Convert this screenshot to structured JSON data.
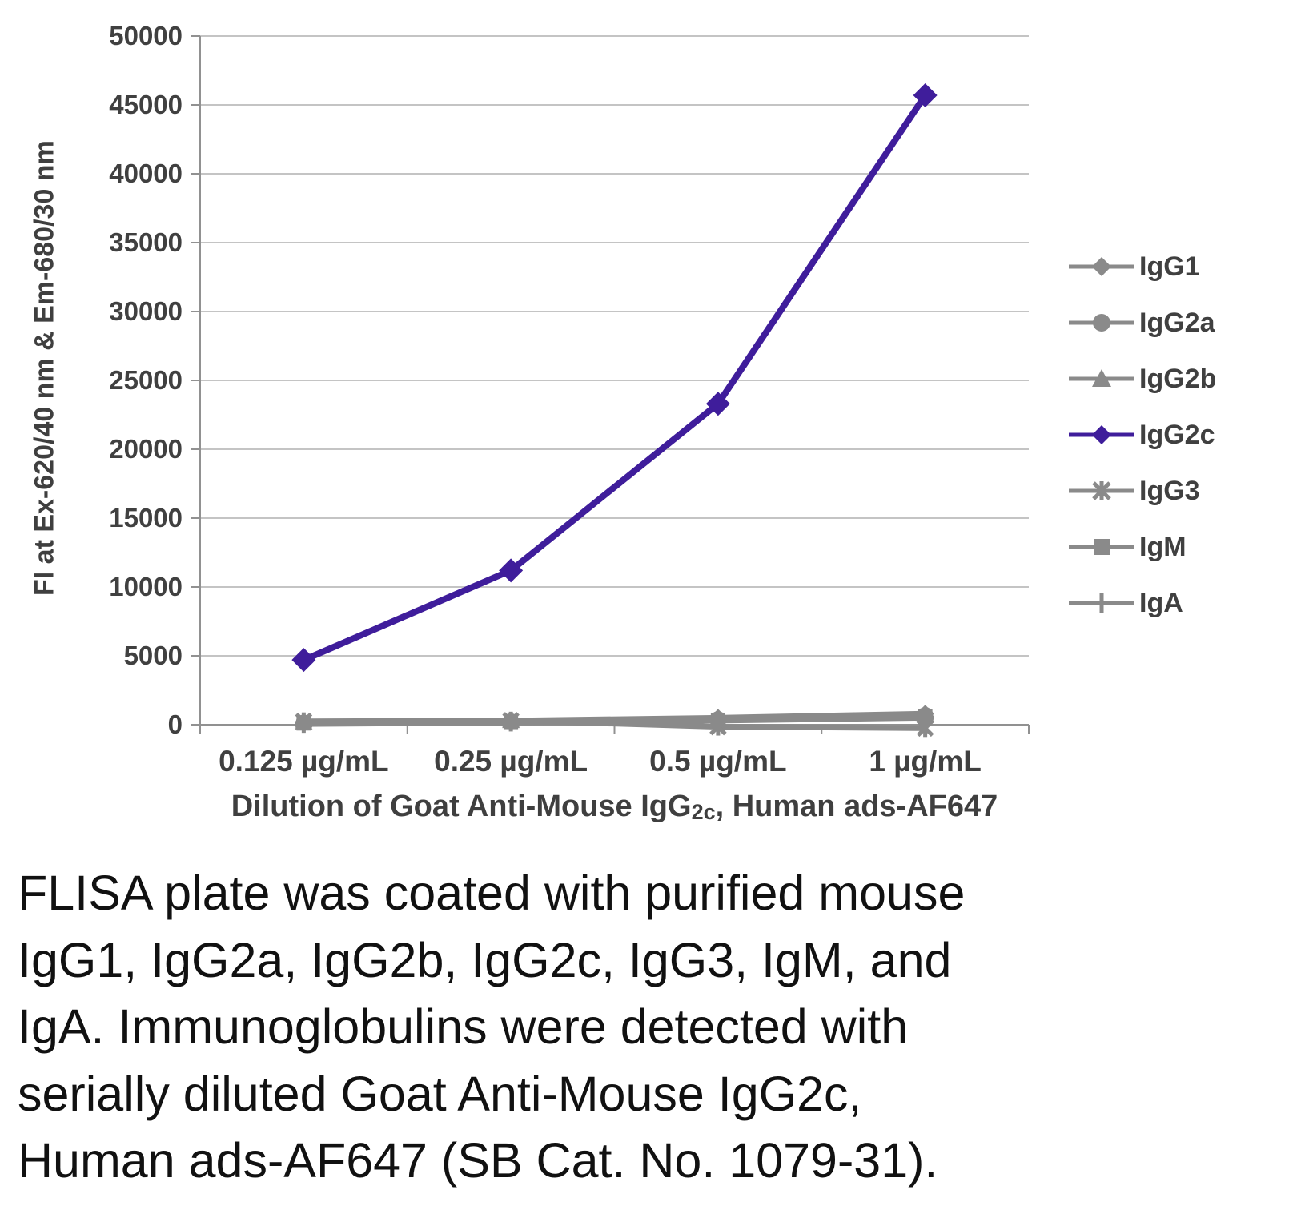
{
  "chart_data": {
    "type": "line",
    "title": "",
    "x_categories": [
      "0.125 µg/mL",
      "0.25 µg/mL",
      "0.5 µg/mL",
      "1 µg/mL"
    ],
    "xlabel": "Dilution of Goat Anti-Mouse IgG2c, Human ads-AF647",
    "xlabel_parts": {
      "prefix": "Dilution of Goat Anti-Mouse IgG",
      "sub": "2c",
      "suffix": ", Human ads-AF647"
    },
    "ylabel": "FI at Ex-620/40 nm & Em-680/30 nm",
    "ylim": [
      0,
      50000
    ],
    "ytick_step": 5000,
    "grid": true,
    "legend_position": "right",
    "series": [
      {
        "name": "IgG1",
        "marker": "diamond",
        "color": "#8a8a8a",
        "values": [
          200,
          300,
          500,
          800
        ]
      },
      {
        "name": "IgG2a",
        "marker": "circle",
        "color": "#8a8a8a",
        "values": [
          150,
          250,
          400,
          700
        ]
      },
      {
        "name": "IgG2b",
        "marker": "triangle",
        "color": "#8a8a8a",
        "values": [
          180,
          280,
          450,
          750
        ]
      },
      {
        "name": "IgG2c",
        "marker": "diamond",
        "color": "#3f1d9b",
        "values": [
          4700,
          11200,
          23300,
          45700
        ]
      },
      {
        "name": "IgG3",
        "marker": "asterisk",
        "color": "#8a8a8a",
        "values": [
          250,
          300,
          -150,
          -250
        ]
      },
      {
        "name": "IgM",
        "marker": "square",
        "color": "#8a8a8a",
        "values": [
          100,
          200,
          350,
          600
        ]
      },
      {
        "name": "IgA",
        "marker": "plus",
        "color": "#8a8a8a",
        "values": [
          50,
          150,
          300,
          500
        ]
      }
    ]
  },
  "caption_lines": [
    "FLISA plate was coated with purified mouse",
    "IgG1, IgG2a, IgG2b, IgG2c, IgG3, IgM, and",
    "IgA.  Immunoglobulins were detected with",
    "serially diluted Goat Anti-Mouse IgG2c,",
    "Human ads-AF647 (SB Cat. No. 1079-31)."
  ],
  "colors": {
    "accent_purple": "#3f1d9b",
    "series_gray": "#8a8a8a",
    "gridline": "#c4c4c4",
    "axis": "#919191",
    "tick_text": "#404040"
  }
}
